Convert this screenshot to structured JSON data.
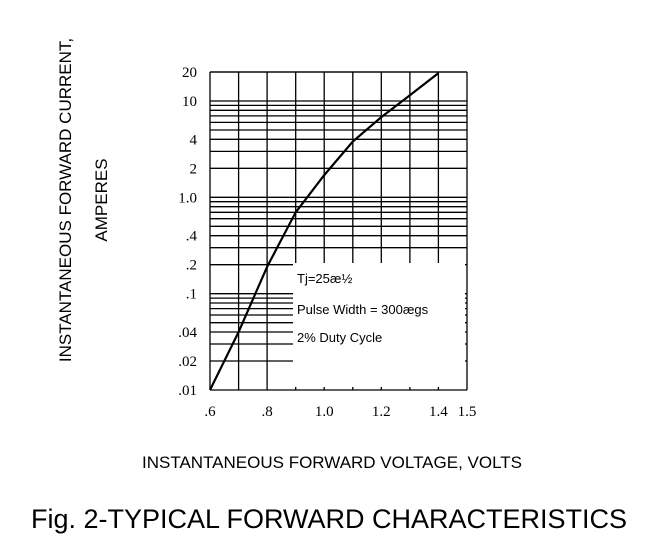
{
  "caption": "Fig. 2-TYPICAL FORWARD CHARACTERISTICS",
  "chart_data": {
    "type": "line",
    "title": "",
    "xlabel": "INSTANTANEOUS FORWARD VOLTAGE, VOLTS",
    "ylabel_line1": "INSTANTANEOUS FORWARD CURRENT,",
    "ylabel_line2": "AMPERES",
    "x_ticks": [
      {
        "value": 0.6,
        "label": ".6"
      },
      {
        "value": 0.8,
        "label": ".8"
      },
      {
        "value": 1.0,
        "label": "1.0"
      },
      {
        "value": 1.2,
        "label": "1.2"
      },
      {
        "value": 1.4,
        "label": "1.4"
      },
      {
        "value": 1.5,
        "label": "1.5"
      }
    ],
    "y_ticks": [
      {
        "value": 20,
        "label": "20"
      },
      {
        "value": 10,
        "label": "10"
      },
      {
        "value": 4,
        "label": "4"
      },
      {
        "value": 2,
        "label": "2"
      },
      {
        "value": 1.0,
        "label": "1.0"
      },
      {
        "value": 0.4,
        "label": ".4"
      },
      {
        "value": 0.2,
        "label": ".2"
      },
      {
        "value": 0.1,
        "label": ".1"
      },
      {
        "value": 0.04,
        "label": ".04"
      },
      {
        "value": 0.02,
        "label": ".02"
      },
      {
        "value": 0.01,
        "label": ".01"
      }
    ],
    "xlim": [
      0.6,
      1.5
    ],
    "ylim": [
      0.01,
      20
    ],
    "y_scale": "log",
    "grid": true,
    "annotations": [
      "Tj=25æ½",
      "Pulse Width = 300ægs",
      "2% Duty Cycle"
    ],
    "series": [
      {
        "x": [
          0.6,
          0.7,
          0.8,
          0.9,
          1.0,
          1.1,
          1.2,
          1.3,
          1.4
        ],
        "y": [
          0.01,
          0.04,
          0.19,
          0.7,
          1.7,
          3.8,
          6.8,
          11.5,
          19.5
        ]
      }
    ]
  }
}
